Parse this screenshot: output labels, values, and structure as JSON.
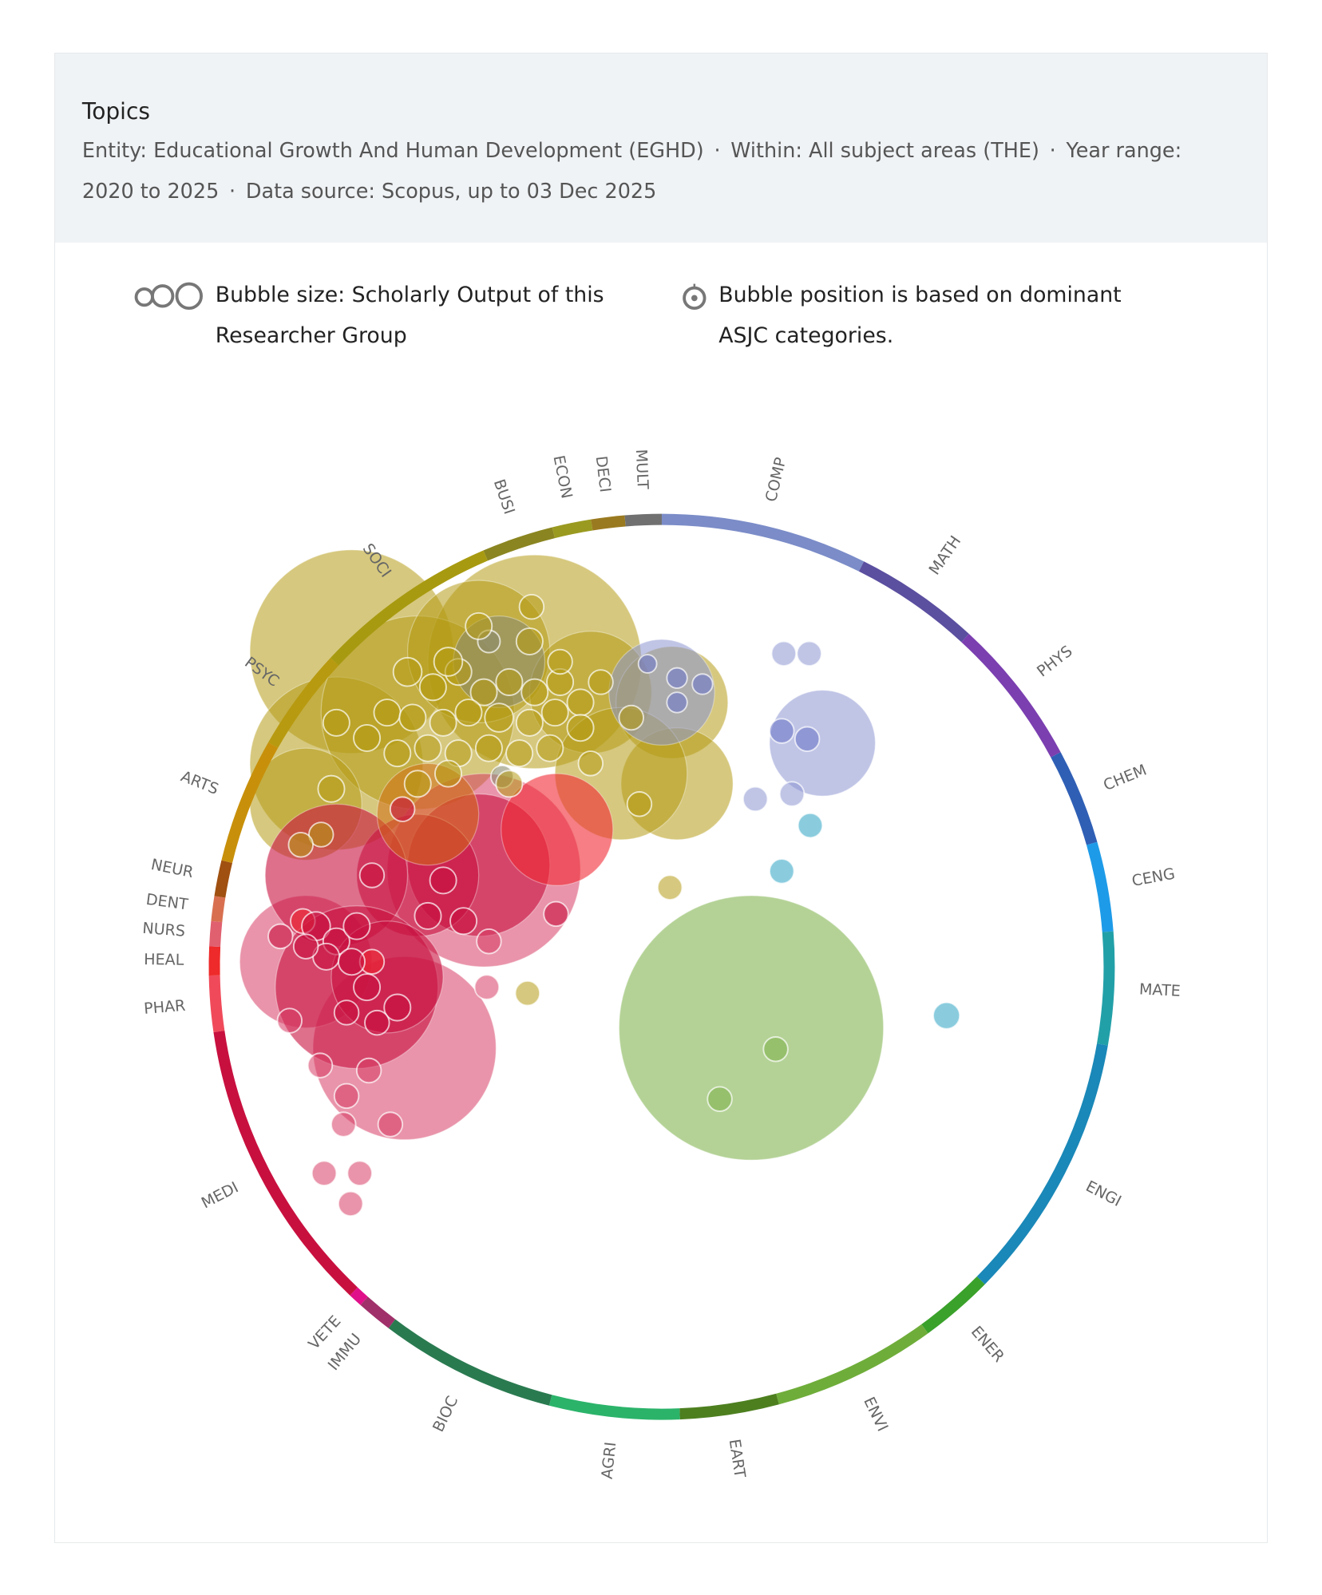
{
  "header": {
    "title": "Topics",
    "entity": "Entity: Educational Growth And Human Development (EGHD)",
    "within": "Within: All subject areas (THE)",
    "year_range": "Year range: 2020 to 2025",
    "data_source": "Data source: Scopus, up to 03 Dec 2025",
    "separator": "·"
  },
  "legend": {
    "size_label": "Bubble size:  Scholarly Output of this Researcher Group",
    "position_label": "Bubble position is based on dominant ASJC categories."
  },
  "chart_data": {
    "type": "bubble-wheel",
    "title": "Topics",
    "ring_radius": 440,
    "categories": [
      {
        "code": "COMP",
        "start": 0,
        "end": 26.5,
        "color": "#7b8cc8"
      },
      {
        "code": "MATH",
        "start": 26.5,
        "end": 42.7,
        "color": "#5b4fa0"
      },
      {
        "code": "PHYS",
        "start": 42.7,
        "end": 61.7,
        "color": "#7b3fb0"
      },
      {
        "code": "CHEM",
        "start": 61.7,
        "end": 74,
        "color": "#2f5fb5"
      },
      {
        "code": "CENG",
        "start": 74,
        "end": 85.5,
        "color": "#1e9be8"
      },
      {
        "code": "MATE",
        "start": 85.5,
        "end": 100,
        "color": "#22a0a8"
      },
      {
        "code": "ENGI",
        "start": 100,
        "end": 134.5,
        "color": "#1a88b8"
      },
      {
        "code": "ENER",
        "start": 134.5,
        "end": 144,
        "color": "#3aa12a"
      },
      {
        "code": "ENVI",
        "start": 144,
        "end": 165,
        "color": "#6fad3a"
      },
      {
        "code": "EART",
        "start": 165,
        "end": 177.7,
        "color": "#4d7f1f"
      },
      {
        "code": "AGRI",
        "start": 177.7,
        "end": 194.4,
        "color": "#2bb36a"
      },
      {
        "code": "BIOC",
        "start": 194.4,
        "end": 217.1,
        "color": "#2a7a50"
      },
      {
        "code": "IMMU",
        "start": 217.1,
        "end": 221.7,
        "color": "#a0306a"
      },
      {
        "code": "VETE",
        "start": 221.7,
        "end": 223.5,
        "color": "#e0108a"
      },
      {
        "code": "MEDI",
        "start": 223.5,
        "end": 261.7,
        "color": "#c8103f"
      },
      {
        "code": "PHAR",
        "start": 261.7,
        "end": 268.9,
        "color": "#f04a5a"
      },
      {
        "code": "HEAL",
        "start": 268.9,
        "end": 272.6,
        "color": "#ee2a2a"
      },
      {
        "code": "NURS",
        "start": 272.6,
        "end": 275.8,
        "color": "#e06070"
      },
      {
        "code": "DENT",
        "start": 275.8,
        "end": 279,
        "color": "#d87050"
      },
      {
        "code": "NEUR",
        "start": 279,
        "end": 283.6,
        "color": "#a05010"
      },
      {
        "code": "ARTS",
        "start": 283.6,
        "end": 299.7,
        "color": "#c8900a"
      },
      {
        "code": "PSYC",
        "start": 299.7,
        "end": 313,
        "color": "#b89a10"
      },
      {
        "code": "SOCI",
        "start": 313,
        "end": 336.8,
        "color": "#a89a10"
      },
      {
        "code": "BUSI",
        "start": 336.8,
        "end": 346,
        "color": "#8a8520"
      },
      {
        "code": "ECON",
        "start": 346,
        "end": 351,
        "color": "#9a9a20"
      },
      {
        "code": "DECI",
        "start": 351,
        "end": 355.3,
        "color": "#9a7a20"
      },
      {
        "code": "MULT",
        "start": 355.3,
        "end": 360,
        "color": "#707070"
      }
    ],
    "bubble_colors": {
      "SOCI": "rgba(180,155,20,0.55)",
      "MULT": "rgba(140,140,110,0.6)",
      "COMP": "rgba(140,150,210,0.55)",
      "COMPD": "rgba(110,120,200,0.6)",
      "MATE": "rgba(60,170,200,0.6)",
      "ENVI": "rgba(130,180,80,0.6)",
      "MEDI": "rgba(200,16,63,0.6)",
      "HEAL": "rgba(240,40,50,0.6)",
      "PHAR": "rgba(215,60,100,0.55)",
      "ARTS": "rgba(210,110,20,0.55)"
    },
    "bubbles": [
      [
        -305,
        310,
        100,
        "SOCI"
      ],
      [
        -125,
        300,
        105,
        "SOCI"
      ],
      [
        -320,
        200,
        85,
        "SOCI"
      ],
      [
        -240,
        250,
        95,
        "SOCI"
      ],
      [
        -180,
        310,
        70,
        "SOCI"
      ],
      [
        -70,
        270,
        60,
        "SOCI"
      ],
      [
        10,
        260,
        55,
        "SOCI"
      ],
      [
        15,
        180,
        55,
        "SOCI"
      ],
      [
        -40,
        190,
        65,
        "SOCI"
      ],
      [
        -350,
        160,
        55,
        "SOCI"
      ],
      [
        -160,
        300,
        45,
        "MULT"
      ],
      [
        -175,
        95,
        95,
        "PHAR"
      ],
      [
        -253,
        -80,
        90,
        "PHAR"
      ],
      [
        -350,
        5,
        65,
        "PHAR"
      ],
      [
        -180,
        100,
        70,
        "MEDI"
      ],
      [
        -240,
        90,
        60,
        "MEDI"
      ],
      [
        -320,
        90,
        70,
        "MEDI"
      ],
      [
        -300,
        -20,
        80,
        "MEDI"
      ],
      [
        -270,
        -10,
        55,
        "MEDI"
      ],
      [
        -103,
        135,
        55,
        "HEAL"
      ],
      [
        -230,
        150,
        50,
        "ARTS"
      ],
      [
        0,
        270,
        52,
        "COMP"
      ],
      [
        158,
        220,
        52,
        "COMP"
      ],
      [
        120,
        308,
        12,
        "COMP"
      ],
      [
        145,
        308,
        12,
        "COMP"
      ],
      [
        92,
        165,
        12,
        "COMP"
      ],
      [
        128,
        170,
        12,
        "COMP"
      ],
      [
        118,
        232,
        12,
        "COMPD"
      ],
      [
        143,
        224,
        12,
        "COMPD"
      ],
      [
        15,
        284,
        10,
        "COMPD"
      ],
      [
        15,
        260,
        10,
        "COMPD"
      ],
      [
        40,
        278,
        10,
        "COMPD"
      ],
      [
        -14,
        298,
        9,
        "COMPD"
      ],
      [
        146,
        139,
        12,
        "MATE"
      ],
      [
        118,
        94,
        12,
        "MATE"
      ],
      [
        280,
        -48,
        13,
        "MATE"
      ],
      [
        8,
        78,
        12,
        "SOCI"
      ],
      [
        -132,
        -26,
        12,
        "SOCI"
      ],
      [
        -128,
        354,
        12,
        "SOCI"
      ],
      [
        88,
        -60,
        130,
        "ENVI"
      ],
      [
        112,
        -81,
        12,
        "ENVI"
      ],
      [
        57,
        -130,
        12,
        "ENVI"
      ],
      [
        -332,
        -203,
        12,
        "PHAR"
      ],
      [
        -297,
        -203,
        12,
        "PHAR"
      ],
      [
        -306,
        -233,
        12,
        "PHAR"
      ],
      [
        -313,
        -155,
        12,
        "PHAR"
      ],
      [
        -267,
        -155,
        12,
        "PHAR"
      ],
      [
        -310,
        -127,
        12,
        "PHAR"
      ],
      [
        -336,
        -97,
        12,
        "PHAR"
      ],
      [
        -288,
        -102,
        12,
        "PHAR"
      ],
      [
        -172,
        -20,
        12,
        "PHAR"
      ],
      [
        -170,
        25,
        12,
        "PHAR"
      ],
      [
        -104,
        52,
        12,
        "MEDI"
      ],
      [
        -366,
        -53,
        12,
        "PHAR"
      ],
      [
        -285,
        5,
        12,
        "HEAL"
      ],
      [
        -353,
        45,
        12,
        "HEAL"
      ],
      [
        -157,
        187,
        11,
        "MULT"
      ],
      [
        -170,
        320,
        11,
        "MULT"
      ],
      [
        -250,
        290,
        14,
        "SOCI"
      ],
      [
        -225,
        275,
        13,
        "SOCI"
      ],
      [
        -200,
        290,
        13,
        "SOCI"
      ],
      [
        -175,
        270,
        13,
        "SOCI"
      ],
      [
        -150,
        280,
        13,
        "SOCI"
      ],
      [
        -125,
        270,
        13,
        "SOCI"
      ],
      [
        -100,
        280,
        13,
        "SOCI"
      ],
      [
        -80,
        260,
        13,
        "SOCI"
      ],
      [
        -60,
        280,
        12,
        "SOCI"
      ],
      [
        -270,
        250,
        13,
        "SOCI"
      ],
      [
        -245,
        245,
        13,
        "SOCI"
      ],
      [
        -215,
        240,
        13,
        "SOCI"
      ],
      [
        -190,
        250,
        13,
        "SOCI"
      ],
      [
        -160,
        245,
        14,
        "SOCI"
      ],
      [
        -130,
        240,
        13,
        "SOCI"
      ],
      [
        -105,
        250,
        13,
        "SOCI"
      ],
      [
        -80,
        235,
        13,
        "SOCI"
      ],
      [
        -320,
        240,
        13,
        "SOCI"
      ],
      [
        -290,
        225,
        13,
        "SOCI"
      ],
      [
        -260,
        210,
        13,
        "SOCI"
      ],
      [
        -230,
        215,
        13,
        "SOCI"
      ],
      [
        -200,
        210,
        13,
        "SOCI"
      ],
      [
        -170,
        215,
        13,
        "SOCI"
      ],
      [
        -140,
        210,
        13,
        "SOCI"
      ],
      [
        -110,
        215,
        13,
        "SOCI"
      ],
      [
        -240,
        180,
        13,
        "SOCI"
      ],
      [
        -210,
        190,
        13,
        "SOCI"
      ],
      [
        -150,
        180,
        13,
        "SOCI"
      ],
      [
        -70,
        200,
        12,
        "SOCI"
      ],
      [
        -210,
        300,
        14,
        "SOCI"
      ],
      [
        -180,
        335,
        13,
        "SOCI"
      ],
      [
        -130,
        320,
        13,
        "SOCI"
      ],
      [
        -100,
        300,
        12,
        "SOCI"
      ],
      [
        -30,
        245,
        12,
        "SOCI"
      ],
      [
        -22,
        160,
        12,
        "SOCI"
      ],
      [
        -325,
        175,
        13,
        "SOCI"
      ],
      [
        -335,
        130,
        12,
        "SOCI"
      ],
      [
        -355,
        120,
        12,
        "SOCI"
      ],
      [
        -340,
        40,
        14,
        "MEDI"
      ],
      [
        -320,
        25,
        13,
        "MEDI"
      ],
      [
        -300,
        40,
        13,
        "MEDI"
      ],
      [
        -330,
        10,
        13,
        "MEDI"
      ],
      [
        -305,
        5,
        13,
        "MEDI"
      ],
      [
        -350,
        20,
        12,
        "MEDI"
      ],
      [
        -375,
        30,
        12,
        "MEDI"
      ],
      [
        -290,
        -20,
        13,
        "MEDI"
      ],
      [
        -260,
        -40,
        13,
        "MEDI"
      ],
      [
        -310,
        -45,
        12,
        "MEDI"
      ],
      [
        -280,
        -55,
        12,
        "MEDI"
      ],
      [
        -215,
        85,
        13,
        "MEDI"
      ],
      [
        -230,
        50,
        13,
        "MEDI"
      ],
      [
        -195,
        45,
        13,
        "MEDI"
      ],
      [
        -285,
        90,
        12,
        "MEDI"
      ],
      [
        -255,
        155,
        12,
        "MEDI"
      ]
    ]
  }
}
